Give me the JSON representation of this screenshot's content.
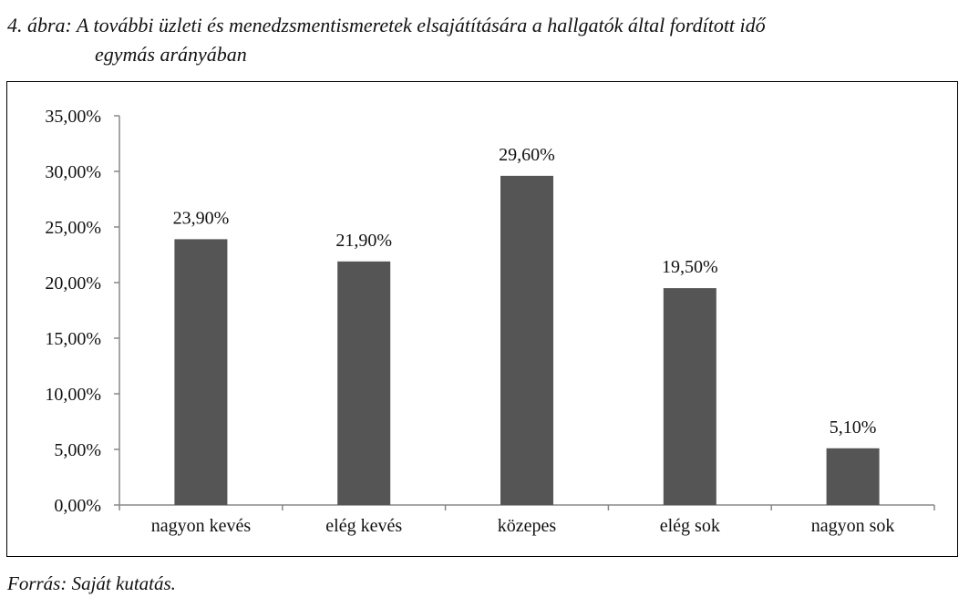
{
  "chart_data": {
    "type": "bar",
    "title_line1": "4. ábra: A további üzleti és menedzsmentismeretek elsajátítására a hallgatók által fordított idő",
    "title_line2": "egymás arányában",
    "categories": [
      "nagyon kevés",
      "elég kevés",
      "közepes",
      "elég sok",
      "nagyon sok"
    ],
    "values": [
      23.9,
      21.9,
      29.6,
      19.5,
      5.1
    ],
    "data_labels": [
      "23,90%",
      "21,90%",
      "29,60%",
      "19,50%",
      "5,10%"
    ],
    "yticks": [
      0,
      5,
      10,
      15,
      20,
      25,
      30,
      35
    ],
    "ytick_labels": [
      "0,00%",
      "5,00%",
      "10,00%",
      "15,00%",
      "20,00%",
      "25,00%",
      "30,00%",
      "35,00%"
    ],
    "ylim": [
      0,
      35
    ],
    "xlabel": "",
    "ylabel": "",
    "grid": false,
    "bar_color": "#555555",
    "source": "Forrás: Saját kutatás."
  }
}
